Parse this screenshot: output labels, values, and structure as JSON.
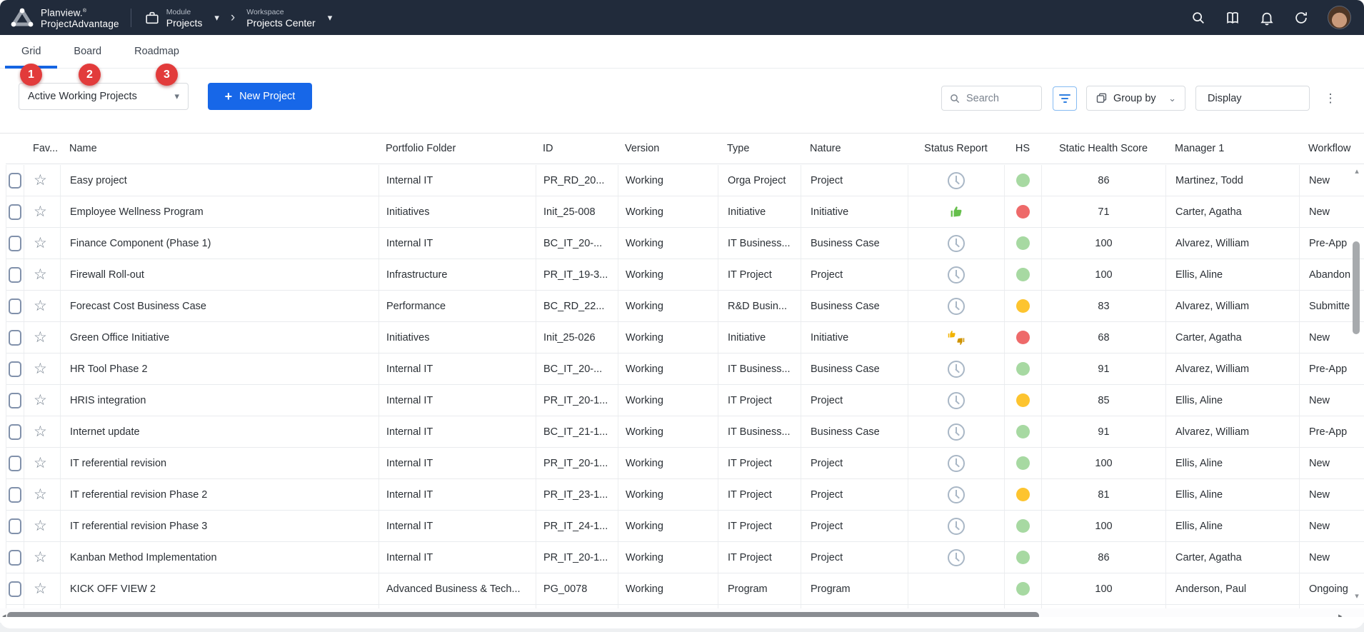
{
  "app": {
    "brand_line1": "Planview.",
    "brand_reg": "®",
    "brand_line2": "ProjectAdvantage",
    "module_label": "Module",
    "module_value": "Projects",
    "workspace_label": "Workspace",
    "workspace_value": "Projects Center"
  },
  "glyphs": {
    "caret_down": "▾",
    "chevron_right": "›",
    "plus": "+",
    "dots_vertical": "⋮",
    "star": "☆",
    "scroll_up": "▴",
    "scroll_down": "▾",
    "scroll_left": "◂",
    "scroll_right": "▸"
  },
  "tabs": [
    {
      "label": "Grid",
      "badge": "1",
      "active": true
    },
    {
      "label": "Board",
      "badge": "2",
      "active": false
    },
    {
      "label": "Roadmap",
      "badge": "3",
      "active": false
    }
  ],
  "toolbar": {
    "view_filter_value": "Active Working Projects",
    "new_project_label": "New Project",
    "search_placeholder": "Search",
    "group_by_label": "Group by",
    "display_label": "Display"
  },
  "colors": {
    "navbar_bg": "#212b3b",
    "accent_blue": "#1767e8",
    "tab_underline": "#1565e2",
    "badge_red": "#e23b3b",
    "hs_green": "#a7d9a2",
    "hs_red": "#ee6a6a",
    "hs_yellow": "#fdc42f",
    "thumb_green": "#66bf4c",
    "thumb_amber": "#f2b300"
  },
  "table": {
    "columns": [
      "",
      "Fav...",
      "Name",
      "Portfolio Folder",
      "ID",
      "Version",
      "Type",
      "Nature",
      "Status Report",
      "HS",
      "Static Health Score",
      "Manager 1",
      "Workflow"
    ],
    "rows": [
      {
        "name": "Easy project",
        "folder": "Internal IT",
        "id": "PR_RD_20...",
        "version": "Working",
        "type": "Orga Project",
        "nature": "Project",
        "status_icon": "clock",
        "hs": "green",
        "score": "86",
        "manager": "Martinez, Todd",
        "workflow": "New"
      },
      {
        "name": "Employee Wellness Program",
        "folder": "Initiatives",
        "id": "Init_25-008",
        "version": "Working",
        "type": "Initiative",
        "nature": "Initiative",
        "status_icon": "thumb-up",
        "hs": "red",
        "score": "71",
        "manager": "Carter, Agatha",
        "workflow": "New"
      },
      {
        "name": "Finance Component (Phase 1)",
        "folder": "Internal IT",
        "id": "BC_IT_20-...",
        "version": "Working",
        "type": "IT Business...",
        "nature": "Business Case",
        "status_icon": "clock",
        "hs": "green",
        "score": "100",
        "manager": "Alvarez, William",
        "workflow": "Pre-App"
      },
      {
        "name": "Firewall Roll-out",
        "folder": "Infrastructure",
        "id": "PR_IT_19-3...",
        "version": "Working",
        "type": "IT Project",
        "nature": "Project",
        "status_icon": "clock",
        "hs": "green",
        "score": "100",
        "manager": "Ellis, Aline",
        "workflow": "Abandon"
      },
      {
        "name": "Forecast Cost Business Case",
        "folder": "Performance",
        "id": "BC_RD_22...",
        "version": "Working",
        "type": "R&D Busin...",
        "nature": "Business Case",
        "status_icon": "clock",
        "hs": "yellow",
        "score": "83",
        "manager": "Alvarez, William",
        "workflow": "Submitte"
      },
      {
        "name": "Green Office Initiative",
        "folder": "Initiatives",
        "id": "Init_25-026",
        "version": "Working",
        "type": "Initiative",
        "nature": "Initiative",
        "status_icon": "thumbs-mixed",
        "hs": "red",
        "score": "68",
        "manager": "Carter, Agatha",
        "workflow": "New"
      },
      {
        "name": "HR Tool Phase 2",
        "folder": "Internal IT",
        "id": "BC_IT_20-...",
        "version": "Working",
        "type": "IT Business...",
        "nature": "Business Case",
        "status_icon": "clock",
        "hs": "green",
        "score": "91",
        "manager": "Alvarez, William",
        "workflow": "Pre-App"
      },
      {
        "name": "HRIS integration",
        "folder": "Internal IT",
        "id": "PR_IT_20-1...",
        "version": "Working",
        "type": "IT Project",
        "nature": "Project",
        "status_icon": "clock",
        "hs": "yellow",
        "score": "85",
        "manager": "Ellis, Aline",
        "workflow": "New"
      },
      {
        "name": "Internet update",
        "folder": "Internal IT",
        "id": "BC_IT_21-1...",
        "version": "Working",
        "type": "IT Business...",
        "nature": "Business Case",
        "status_icon": "clock",
        "hs": "green",
        "score": "91",
        "manager": "Alvarez, William",
        "workflow": "Pre-App"
      },
      {
        "name": "IT referential revision",
        "folder": "Internal IT",
        "id": "PR_IT_20-1...",
        "version": "Working",
        "type": "IT Project",
        "nature": "Project",
        "status_icon": "clock",
        "hs": "green",
        "score": "100",
        "manager": "Ellis, Aline",
        "workflow": "New"
      },
      {
        "name": "IT referential revision Phase 2",
        "folder": "Internal IT",
        "id": "PR_IT_23-1...",
        "version": "Working",
        "type": "IT Project",
        "nature": "Project",
        "status_icon": "clock",
        "hs": "yellow",
        "score": "81",
        "manager": "Ellis, Aline",
        "workflow": "New"
      },
      {
        "name": "IT referential revision Phase 3",
        "folder": "Internal IT",
        "id": "PR_IT_24-1...",
        "version": "Working",
        "type": "IT Project",
        "nature": "Project",
        "status_icon": "clock",
        "hs": "green",
        "score": "100",
        "manager": "Ellis, Aline",
        "workflow": "New"
      },
      {
        "name": "Kanban Method Implementation",
        "folder": "Internal IT",
        "id": "PR_IT_20-1...",
        "version": "Working",
        "type": "IT Project",
        "nature": "Project",
        "status_icon": "clock",
        "hs": "green",
        "score": "86",
        "manager": "Carter, Agatha",
        "workflow": "New"
      },
      {
        "name": "KICK OFF VIEW 2",
        "folder": "Advanced Business & Tech...",
        "id": "PG_0078",
        "version": "Working",
        "type": "Program",
        "nature": "Program",
        "status_icon": "none",
        "hs": "green",
        "score": "100",
        "manager": "Anderson, Paul",
        "workflow": "Ongoing"
      }
    ]
  }
}
